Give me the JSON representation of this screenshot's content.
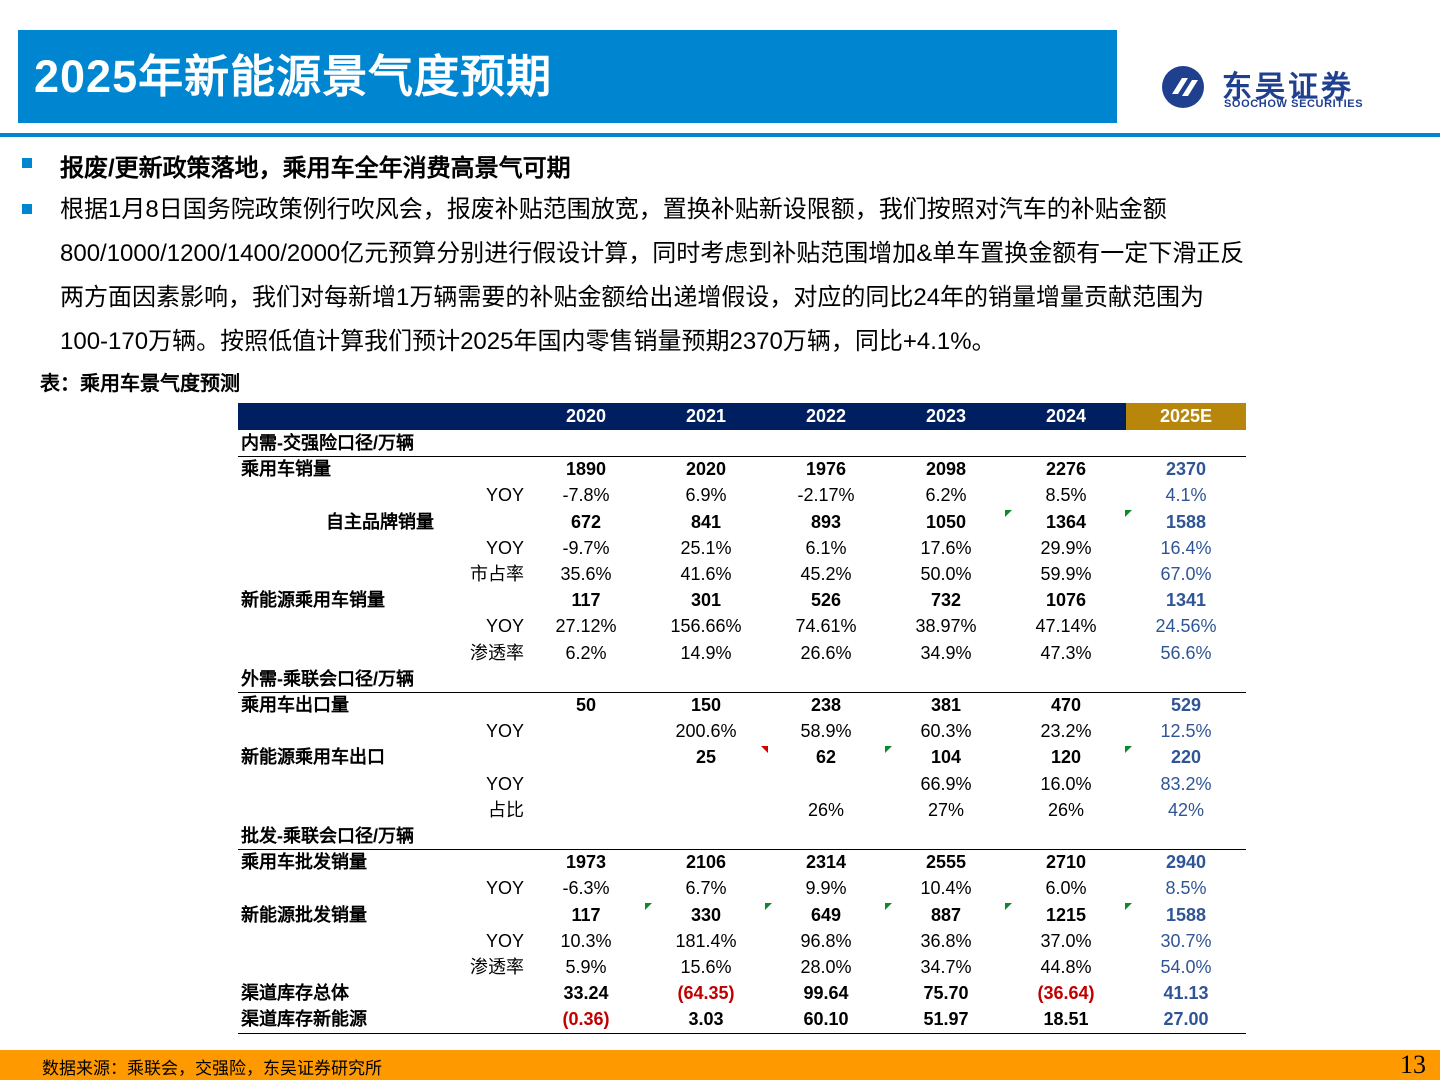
{
  "header": {
    "title": "2025年新能源景气度预期"
  },
  "logo": {
    "name_cn": "东吴证券",
    "name_en": "SOOCHOW SECURITIES",
    "icon": "soochow-logo-icon",
    "color": "#1f3f8f"
  },
  "accent_color": "#0086D1",
  "heading": "报废/更新政策落地，乘用车全年消费高景气可期",
  "paragraph_lines": [
    "根据1月8日国务院政策例行吹风会，报废补贴范围放宽，置换补贴新设限额，我们按照对汽车的补贴金额",
    "800/1000/1200/1400/2000亿元预算分别进行假设计算，同时考虑到补贴范围增加&单车置换金额有一定下滑正反",
    "两方面因素影响，我们对每新增1万辆需要的补贴金额给出递增假设，对应的同比24年的销量增量贡献范围为",
    "100-170万辆。按照低值计算我们预计2025年国内零售销量预期2370万辆，同比+4.1%。"
  ],
  "table": {
    "caption": "表：乘用车景气度预测",
    "columns": [
      "2020",
      "2021",
      "2022",
      "2023",
      "2024",
      "2025E"
    ],
    "rows": [
      {
        "label": "内需-交强险口径/万辆",
        "values": [
          "",
          "",
          "",
          "",
          "",
          ""
        ]
      },
      {
        "label": "乘用车销量",
        "values": [
          "1890",
          "2020",
          "1976",
          "2098",
          "2276",
          "2370"
        ]
      },
      {
        "label": "YOY",
        "values": [
          "-7.8%",
          "6.9%",
          "-2.17%",
          "6.2%",
          "8.5%",
          "4.1%"
        ]
      },
      {
        "label": "自主品牌销量",
        "values": [
          "672",
          "841",
          "893",
          "1050",
          "1364",
          "1588"
        ]
      },
      {
        "label": "YOY",
        "values": [
          "-9.7%",
          "25.1%",
          "6.1%",
          "17.6%",
          "29.9%",
          "16.4%"
        ]
      },
      {
        "label": "市占率",
        "values": [
          "35.6%",
          "41.6%",
          "45.2%",
          "50.0%",
          "59.9%",
          "67.0%"
        ]
      },
      {
        "label": "新能源乘用车销量",
        "values": [
          "117",
          "301",
          "526",
          "732",
          "1076",
          "1341"
        ]
      },
      {
        "label": "YOY",
        "values": [
          "27.12%",
          "156.66%",
          "74.61%",
          "38.97%",
          "47.14%",
          "24.56%"
        ]
      },
      {
        "label": "渗透率",
        "values": [
          "6.2%",
          "14.9%",
          "26.6%",
          "34.9%",
          "47.3%",
          "56.6%"
        ]
      },
      {
        "label": "外需-乘联会口径/万辆",
        "values": [
          "",
          "",
          "",
          "",
          "",
          ""
        ]
      },
      {
        "label": "乘用车出口量",
        "values": [
          "50",
          "150",
          "238",
          "381",
          "470",
          "529"
        ]
      },
      {
        "label": "YOY",
        "values": [
          "",
          "200.6%",
          "58.9%",
          "60.3%",
          "23.2%",
          "12.5%"
        ]
      },
      {
        "label": "新能源乘用车出口",
        "values": [
          "",
          "25",
          "62",
          "104",
          "120",
          "220"
        ]
      },
      {
        "label": "YOY",
        "values": [
          "",
          "",
          "",
          "66.9%",
          "16.0%",
          "83.2%"
        ]
      },
      {
        "label": "占比",
        "values": [
          "",
          "",
          "26%",
          "27%",
          "26%",
          "42%"
        ]
      },
      {
        "label": "批发-乘联会口径/万辆",
        "values": [
          "",
          "",
          "",
          "",
          "",
          ""
        ]
      },
      {
        "label": "乘用车批发销量",
        "values": [
          "1973",
          "2106",
          "2314",
          "2555",
          "2710",
          "2940"
        ]
      },
      {
        "label": "YOY",
        "values": [
          "-6.3%",
          "6.7%",
          "9.9%",
          "10.4%",
          "6.0%",
          "8.5%"
        ]
      },
      {
        "label": "新能源批发销量",
        "values": [
          "117",
          "330",
          "649",
          "887",
          "1215",
          "1588"
        ]
      },
      {
        "label": "YOY",
        "values": [
          "10.3%",
          "181.4%",
          "96.8%",
          "36.8%",
          "37.0%",
          "30.7%"
        ]
      },
      {
        "label": "渗透率",
        "values": [
          "5.9%",
          "15.6%",
          "28.0%",
          "34.7%",
          "44.8%",
          "54.0%"
        ]
      },
      {
        "label": "渠道库存总体",
        "values": [
          "33.24",
          "(64.35)",
          "99.64",
          "75.70",
          "(36.64)",
          "41.13"
        ]
      },
      {
        "label": "渠道库存新能源",
        "values": [
          "(0.36)",
          "3.03",
          "60.10",
          "51.97",
          "18.51",
          "27.00"
        ]
      }
    ]
  },
  "footer": {
    "source": "数据来源：乘联会，交强险，东吴证券研究所",
    "page": "13"
  }
}
